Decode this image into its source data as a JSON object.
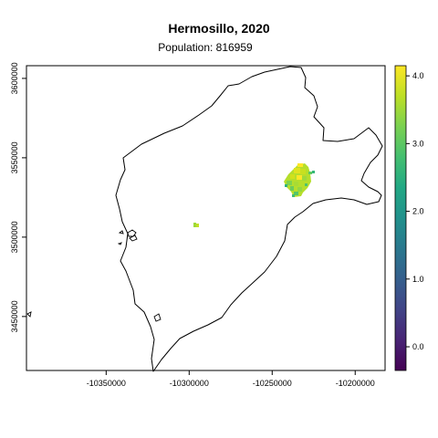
{
  "title": "Hermosillo, 2020",
  "subtitle": "Population: 816959",
  "x_axis": {
    "ticks": [
      {
        "value": -10350000,
        "label": "-10350000"
      },
      {
        "value": -10300000,
        "label": "-10300000"
      },
      {
        "value": -10250000,
        "label": "-10250000"
      },
      {
        "value": -10200000,
        "label": "-10200000"
      }
    ],
    "range": [
      -10398000,
      -10182000
    ]
  },
  "y_axis": {
    "ticks": [
      {
        "value": 3450000,
        "label": "3450000"
      },
      {
        "value": 3500000,
        "label": "3500000"
      },
      {
        "value": 3550000,
        "label": "3550000"
      },
      {
        "value": 3600000,
        "label": "3600000"
      }
    ],
    "range": [
      3416000,
      3608000
    ]
  },
  "legend": {
    "type": "continuous-colorbar",
    "palette": "viridis",
    "range": [
      -0.35,
      4.15
    ],
    "ticks": [
      {
        "value": 0.0,
        "label": "0.0"
      },
      {
        "value": 1.0,
        "label": "1.0"
      },
      {
        "value": 2.0,
        "label": "2.0"
      },
      {
        "value": 3.0,
        "label": "3.0"
      },
      {
        "value": 4.0,
        "label": "4.0"
      }
    ]
  },
  "colors": {
    "boundary": "#000000",
    "viridis_low": "#440154",
    "viridis_high": "#fde725"
  }
}
